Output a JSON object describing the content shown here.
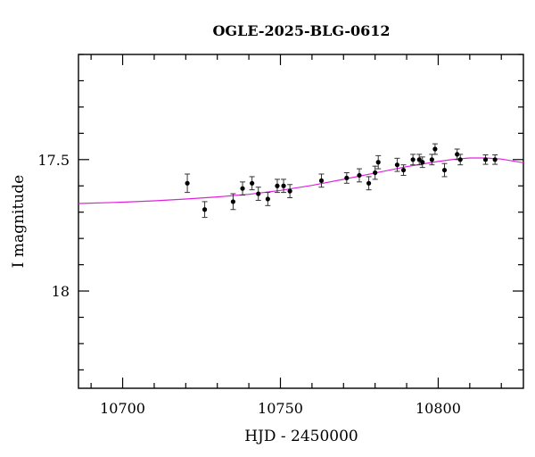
{
  "chart_data": {
    "type": "scatter",
    "title": "OGLE-2025-BLG-0612",
    "xlabel": "HJD - 2450000",
    "ylabel": "I magnitude",
    "xlim": [
      10686,
      10827
    ],
    "ylim": [
      18.37,
      17.1
    ],
    "y_inverted": true,
    "x_ticks": [
      10700,
      10750,
      10800
    ],
    "x_tick_labels": [
      "10700",
      "10750",
      "10800"
    ],
    "y_ticks": [
      17.5,
      18
    ],
    "y_tick_labels": [
      "17.5",
      "18"
    ],
    "colors": {
      "points": "#000000",
      "model": "#e020e0",
      "frame": "#000000"
    },
    "series": [
      {
        "name": "observations",
        "points": [
          {
            "x": 10720.5,
            "y": 17.59,
            "err": 0.035
          },
          {
            "x": 10726.0,
            "y": 17.69,
            "err": 0.03
          },
          {
            "x": 10735.0,
            "y": 17.66,
            "err": 0.03
          },
          {
            "x": 10738.0,
            "y": 17.61,
            "err": 0.025
          },
          {
            "x": 10741.0,
            "y": 17.59,
            "err": 0.025
          },
          {
            "x": 10743.0,
            "y": 17.63,
            "err": 0.025
          },
          {
            "x": 10746.0,
            "y": 17.65,
            "err": 0.025
          },
          {
            "x": 10749.0,
            "y": 17.6,
            "err": 0.025
          },
          {
            "x": 10751.0,
            "y": 17.6,
            "err": 0.025
          },
          {
            "x": 10753.0,
            "y": 17.62,
            "err": 0.025
          },
          {
            "x": 10763.0,
            "y": 17.58,
            "err": 0.025
          },
          {
            "x": 10771.0,
            "y": 17.57,
            "err": 0.02
          },
          {
            "x": 10775.0,
            "y": 17.56,
            "err": 0.025
          },
          {
            "x": 10778.0,
            "y": 17.59,
            "err": 0.025
          },
          {
            "x": 10780.0,
            "y": 17.55,
            "err": 0.025
          },
          {
            "x": 10781.0,
            "y": 17.51,
            "err": 0.025
          },
          {
            "x": 10787.0,
            "y": 17.52,
            "err": 0.025
          },
          {
            "x": 10789.0,
            "y": 17.54,
            "err": 0.02
          },
          {
            "x": 10792.0,
            "y": 17.5,
            "err": 0.02
          },
          {
            "x": 10794.0,
            "y": 17.5,
            "err": 0.02
          },
          {
            "x": 10795.0,
            "y": 17.51,
            "err": 0.02
          },
          {
            "x": 10798.0,
            "y": 17.5,
            "err": 0.02
          },
          {
            "x": 10799.0,
            "y": 17.46,
            "err": 0.02
          },
          {
            "x": 10802.0,
            "y": 17.54,
            "err": 0.025
          },
          {
            "x": 10806.0,
            "y": 17.48,
            "err": 0.02
          },
          {
            "x": 10807.0,
            "y": 17.5,
            "err": 0.02
          },
          {
            "x": 10815.0,
            "y": 17.5,
            "err": 0.018
          },
          {
            "x": 10818.0,
            "y": 17.5,
            "err": 0.018
          }
        ]
      },
      {
        "name": "model",
        "x": [
          10686,
          10700,
          10710,
          10720,
          10730,
          10740,
          10750,
          10760,
          10770,
          10780,
          10790,
          10800,
          10805,
          10810,
          10815,
          10820,
          10827
        ],
        "y": [
          17.667,
          17.662,
          17.657,
          17.65,
          17.642,
          17.632,
          17.617,
          17.598,
          17.575,
          17.551,
          17.527,
          17.507,
          17.499,
          17.494,
          17.494,
          17.498,
          17.512
        ]
      }
    ]
  }
}
